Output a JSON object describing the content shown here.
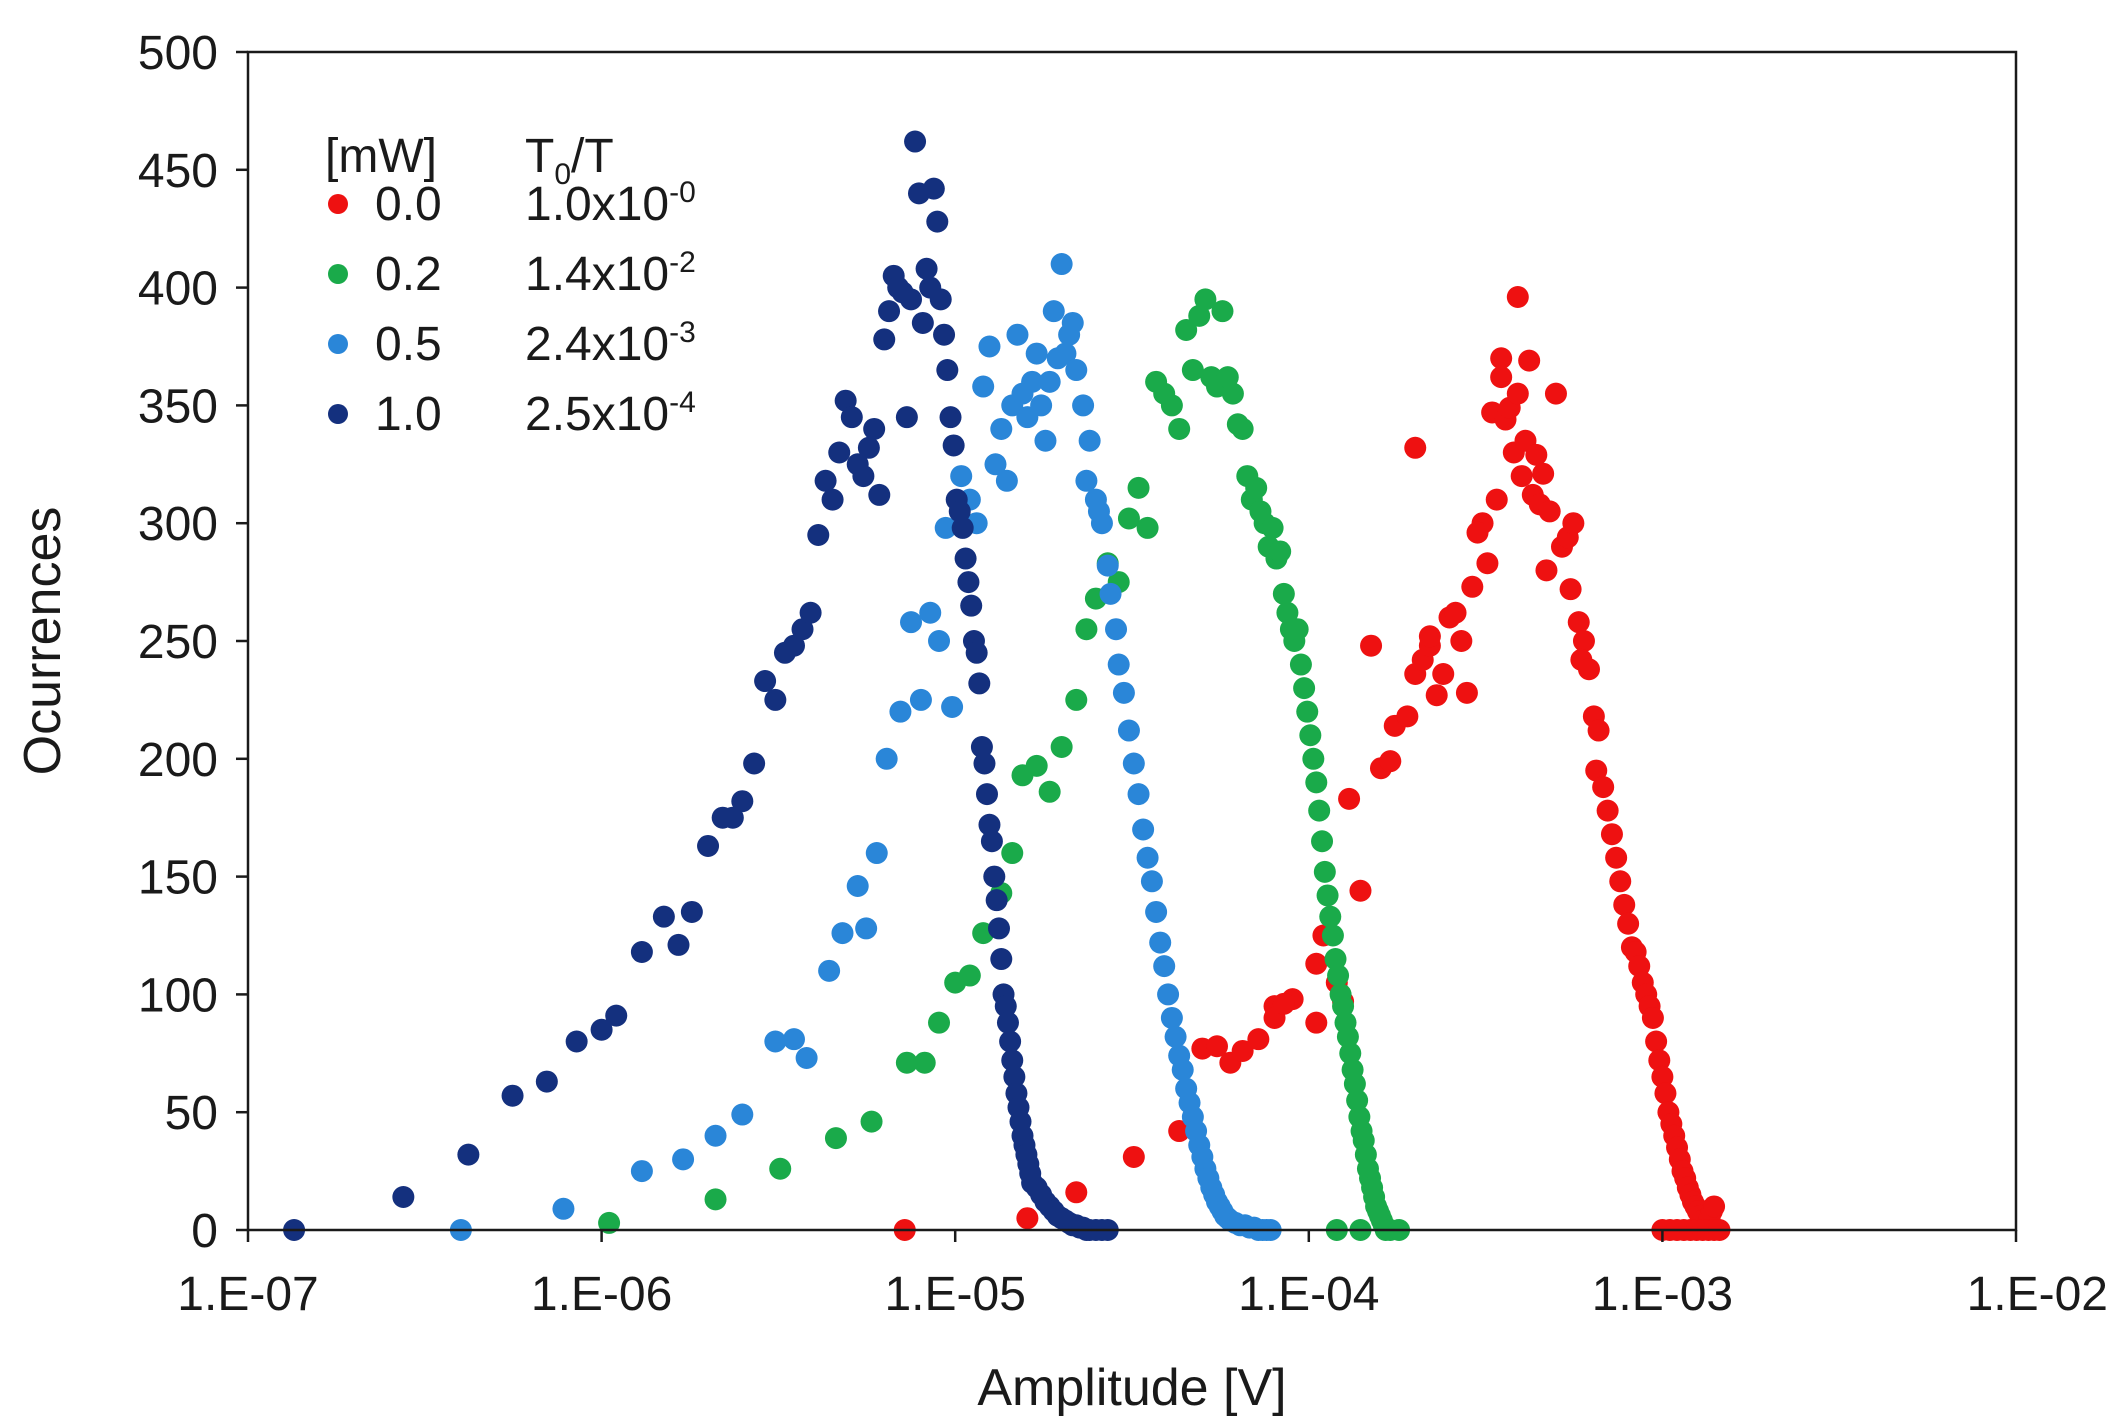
{
  "chart_data": {
    "type": "scatter",
    "title": "",
    "xlabel": "Amplitude [V]",
    "ylabel": "Ocurrences",
    "xscale": "log",
    "xlim": [
      1e-07,
      0.01
    ],
    "ylim": [
      0,
      500
    ],
    "grid": false,
    "xtick_values": [
      1e-07,
      1e-06,
      1e-05,
      0.0001,
      0.001,
      0.01
    ],
    "xtick_labels": [
      "1.E-07",
      "1.E-06",
      "1.E-05",
      "1.E-04",
      "1.E-03",
      "1.E-02"
    ],
    "yticks": [
      0,
      50,
      100,
      150,
      200,
      250,
      300,
      350,
      400,
      450,
      500
    ],
    "legend": {
      "placement": "top-left",
      "header_power": "[mW]",
      "header_ratio_main": "T",
      "header_ratio_sub": "0",
      "header_ratio_tail": "/T",
      "entries": [
        {
          "power": "0.0",
          "ratio_mantissa": "1.0x10",
          "ratio_exponent": "-0"
        },
        {
          "power": "0.2",
          "ratio_mantissa": "1.4x10",
          "ratio_exponent": "-2"
        },
        {
          "power": "0.5",
          "ratio_mantissa": "2.4x10",
          "ratio_exponent": "-3"
        },
        {
          "power": "1.0",
          "ratio_mantissa": "2.5x10",
          "ratio_exponent": "-4"
        }
      ]
    },
    "series": [
      {
        "name": "0.0",
        "color": "#ee1111",
        "x": [
          7.2e-06,
          1.6e-05,
          2.2e-05,
          3.2e-05,
          4.3e-05,
          5e-05,
          5.5e-05,
          6e-05,
          6.5e-05,
          7.2e-05,
          8e-05,
          9e-05,
          8e-05,
          8.5e-05,
          0.000105,
          0.00011,
          0.00012,
          0.00014,
          0.000105,
          0.000125,
          0.00013,
          0.00015,
          0.00016,
          0.00017,
          0.000175,
          0.00019,
          0.0002,
          0.00021,
          0.00022,
          0.0002,
          0.00023,
          0.00025,
          0.00022,
          0.00024,
          0.00026,
          0.00028,
          0.00027,
          0.00029,
          0.00031,
          0.0003,
          0.00033,
          0.00035,
          0.00032,
          0.00034,
          0.00036,
          0.00038,
          0.00035,
          0.00039,
          0.00037,
          0.00039,
          0.0004,
          0.00042,
          0.00041,
          0.00044,
          0.00046,
          0.00043,
          0.00045,
          0.00048,
          0.0005,
          0.00047,
          0.00052,
          0.00054,
          0.00056,
          0.00055,
          0.00058,
          0.0006,
          0.00059,
          0.00062,
          0.00064,
          0.00066,
          0.00065,
          0.00068,
          0.0007,
          0.00072,
          0.00074,
          0.00076,
          0.00078,
          0.0008,
          0.00082,
          0.00084,
          0.00086,
          0.00088,
          0.0009,
          0.00092,
          0.00094,
          0.00096,
          0.00098,
          0.001,
          0.00102,
          0.00104,
          0.00106,
          0.00108,
          0.0011,
          0.00112,
          0.00114,
          0.00116,
          0.00118,
          0.0012,
          0.00122,
          0.00124,
          0.00126,
          0.00128,
          0.0013,
          0.00132,
          0.00134,
          0.00136,
          0.00138,
          0.0014,
          0.001,
          0.00105,
          0.0011,
          0.00115,
          0.0012,
          0.00125,
          0.0013,
          0.00135,
          0.0014,
          0.00145
        ],
        "y": [
          0,
          5,
          16,
          31,
          42,
          77,
          78,
          71,
          76,
          81,
          95,
          98,
          90,
          96,
          113,
          125,
          105,
          144,
          88,
          97,
          183,
          248,
          196,
          199,
          214,
          218,
          236,
          242,
          248,
          332,
          227,
          260,
          252,
          236,
          262,
          228,
          250,
          273,
          300,
          296,
          347,
          362,
          283,
          310,
          344,
          330,
          370,
          396,
          349,
          355,
          320,
          369,
          335,
          329,
          321,
          312,
          308,
          305,
          355,
          280,
          290,
          294,
          300,
          272,
          258,
          250,
          242,
          238,
          218,
          212,
          195,
          188,
          178,
          168,
          158,
          148,
          138,
          130,
          120,
          118,
          112,
          105,
          100,
          95,
          90,
          80,
          72,
          65,
          58,
          50,
          45,
          40,
          35,
          30,
          25,
          22,
          18,
          15,
          12,
          10,
          8,
          6,
          4,
          2,
          3,
          5,
          8,
          10,
          0,
          0,
          0,
          0,
          0,
          0,
          0,
          0,
          0,
          0
        ]
      },
      {
        "name": "0.2",
        "color": "#1aaa4a",
        "x": [
          1.05e-06,
          2.1e-06,
          3.2e-06,
          4.6e-06,
          5.8e-06,
          7.3e-06,
          8.2e-06,
          9e-06,
          1e-05,
          1.1e-05,
          1.2e-05,
          1.35e-05,
          1.45e-05,
          1.55e-05,
          1.7e-05,
          1.85e-05,
          2e-05,
          2.2e-05,
          2.35e-05,
          2.5e-05,
          2.7e-05,
          2.9e-05,
          3.1e-05,
          3.3e-05,
          3.5e-05,
          3.7e-05,
          3.9e-05,
          4.1e-05,
          4.3e-05,
          4.5e-05,
          4.7e-05,
          4.9e-05,
          5.1e-05,
          5.3e-05,
          5.5e-05,
          5.7e-05,
          5.9e-05,
          6.1e-05,
          6.3e-05,
          6.5e-05,
          6.7e-05,
          6.9e-05,
          7.1e-05,
          7.3e-05,
          7.5e-05,
          7.7e-05,
          7.9e-05,
          8.1e-05,
          8.3e-05,
          8.5e-05,
          8.7e-05,
          8.9e-05,
          9.1e-05,
          9.3e-05,
          9.5e-05,
          9.7e-05,
          9.9e-05,
          0.000101,
          0.000103,
          0.000105,
          0.000107,
          0.000109,
          0.000111,
          0.000113,
          0.000115,
          0.000117,
          0.000119,
          0.000121,
          0.000123,
          0.000125,
          0.000127,
          0.000129,
          0.000131,
          0.000133,
          0.000135,
          0.000137,
          0.000139,
          0.000141,
          0.000143,
          0.000145,
          0.000147,
          0.000149,
          0.000151,
          0.000153,
          0.000155,
          0.000157,
          0.000159,
          0.000161,
          0.000163,
          0.000165,
          0.00017,
          0.00018,
          0.00012,
          0.00014
        ],
        "y": [
          3,
          13,
          26,
          39,
          46,
          71,
          71,
          88,
          105,
          108,
          126,
          143,
          160,
          193,
          197,
          186,
          205,
          225,
          255,
          268,
          283,
          275,
          302,
          315,
          298,
          360,
          355,
          350,
          340,
          382,
          365,
          388,
          395,
          362,
          358,
          390,
          362,
          355,
          342,
          340,
          320,
          310,
          315,
          305,
          300,
          290,
          298,
          285,
          288,
          270,
          262,
          255,
          250,
          255,
          240,
          230,
          220,
          210,
          200,
          190,
          178,
          165,
          152,
          142,
          133,
          125,
          115,
          108,
          100,
          95,
          88,
          82,
          75,
          68,
          62,
          55,
          48,
          42,
          38,
          32,
          26,
          22,
          18,
          14,
          10,
          8,
          6,
          4,
          2,
          0,
          0,
          0,
          0,
          0
        ]
      },
      {
        "name": "0.5",
        "color": "#2a86d8",
        "x": [
          4e-07,
          7.8e-07,
          1.3e-06,
          1.7e-06,
          2.1e-06,
          2.5e-06,
          3.1e-06,
          3.5e-06,
          3.8e-06,
          4.4e-06,
          4.8e-06,
          5.3e-06,
          5.6e-06,
          6e-06,
          6.4e-06,
          7e-06,
          7.5e-06,
          8e-06,
          8.5e-06,
          9e-06,
          9.4e-06,
          9.8e-06,
          1.04e-05,
          1.1e-05,
          1.15e-05,
          1.2e-05,
          1.25e-05,
          1.3e-05,
          1.35e-05,
          1.4e-05,
          1.45e-05,
          1.5e-05,
          1.55e-05,
          1.6e-05,
          1.65e-05,
          1.7e-05,
          1.75e-05,
          1.8e-05,
          1.85e-05,
          1.9e-05,
          1.95e-05,
          2e-05,
          2.05e-05,
          2.1e-05,
          2.15e-05,
          2.2e-05,
          2.3e-05,
          2.35e-05,
          2.4e-05,
          2.5e-05,
          2.55e-05,
          2.6e-05,
          2.7e-05,
          2.75e-05,
          2.85e-05,
          2.9e-05,
          3e-05,
          3.1e-05,
          3.2e-05,
          3.3e-05,
          3.4e-05,
          3.5e-05,
          3.6e-05,
          3.7e-05,
          3.8e-05,
          3.9e-05,
          4e-05,
          4.1e-05,
          4.2e-05,
          4.3e-05,
          4.4e-05,
          4.5e-05,
          4.6e-05,
          4.7e-05,
          4.8e-05,
          4.9e-05,
          5e-05,
          5.1e-05,
          5.2e-05,
          5.3e-05,
          5.4e-05,
          5.5e-05,
          5.6e-05,
          5.7e-05,
          5.8e-05,
          5.9e-05,
          6e-05,
          6.2e-05,
          6.4e-05,
          6.6e-05,
          6.8e-05,
          7e-05,
          7.2e-05,
          7.4e-05,
          7.6e-05,
          7.8e-05
        ],
        "y": [
          0,
          9,
          25,
          30,
          40,
          49,
          80,
          81,
          73,
          110,
          126,
          146,
          128,
          160,
          200,
          220,
          258,
          225,
          262,
          250,
          298,
          222,
          320,
          310,
          300,
          358,
          375,
          325,
          340,
          318,
          350,
          380,
          355,
          345,
          360,
          372,
          350,
          335,
          360,
          390,
          370,
          410,
          372,
          380,
          385,
          365,
          350,
          318,
          335,
          310,
          305,
          300,
          282,
          270,
          255,
          240,
          228,
          212,
          198,
          185,
          170,
          158,
          148,
          135,
          122,
          112,
          100,
          90,
          82,
          74,
          68,
          60,
          54,
          48,
          42,
          36,
          31,
          26,
          22,
          18,
          15,
          12,
          10,
          8,
          6,
          5,
          4,
          3,
          2,
          2,
          1,
          1,
          0,
          0,
          0,
          0
        ]
      },
      {
        "name": "1.0",
        "color": "#14307e",
        "x": [
          1.35e-07,
          2.75e-07,
          4.2e-07,
          5.6e-07,
          7e-07,
          8.5e-07,
          1e-06,
          1.1e-06,
          1.3e-06,
          1.5e-06,
          1.65e-06,
          1.8e-06,
          2e-06,
          2.2e-06,
          2.35e-06,
          2.5e-06,
          2.7e-06,
          2.9e-06,
          3.1e-06,
          3.3e-06,
          3.5e-06,
          3.7e-06,
          3.9e-06,
          4.1e-06,
          4.3e-06,
          4.5e-06,
          4.7e-06,
          4.9e-06,
          5.1e-06,
          5.3e-06,
          5.5e-06,
          5.7e-06,
          5.9e-06,
          6.1e-06,
          6.3e-06,
          6.5e-06,
          6.7e-06,
          6.9e-06,
          7.1e-06,
          7.3e-06,
          7.5e-06,
          7.7e-06,
          7.9e-06,
          8.1e-06,
          8.3e-06,
          8.5e-06,
          8.7e-06,
          8.9e-06,
          9.1e-06,
          9.3e-06,
          9.5e-06,
          9.7e-06,
          9.9e-06,
          1.01e-05,
          1.03e-05,
          1.05e-05,
          1.07e-05,
          1.09e-05,
          1.11e-05,
          1.13e-05,
          1.15e-05,
          1.17e-05,
          1.19e-05,
          1.21e-05,
          1.23e-05,
          1.25e-05,
          1.27e-05,
          1.29e-05,
          1.31e-05,
          1.33e-05,
          1.35e-05,
          1.37e-05,
          1.39e-05,
          1.41e-05,
          1.43e-05,
          1.45e-05,
          1.47e-05,
          1.49e-05,
          1.51e-05,
          1.53e-05,
          1.55e-05,
          1.57e-05,
          1.59e-05,
          1.61e-05,
          1.63e-05,
          1.65e-05,
          1.7e-05,
          1.75e-05,
          1.8e-05,
          1.85e-05,
          1.9e-05,
          1.95e-05,
          2e-05,
          2.05e-05,
          2.1e-05,
          2.15e-05,
          2.2e-05,
          2.25e-05,
          2.3e-05,
          2.35e-05,
          2.4e-05,
          2.5e-05,
          2.6e-05,
          2.7e-05
        ],
        "y": [
          0,
          14,
          32,
          57,
          63,
          80,
          85,
          91,
          118,
          133,
          121,
          135,
          163,
          175,
          175,
          182,
          198,
          233,
          225,
          245,
          248,
          255,
          262,
          295,
          318,
          310,
          330,
          352,
          345,
          325,
          320,
          332,
          340,
          312,
          378,
          390,
          405,
          400,
          398,
          345,
          395,
          462,
          440,
          385,
          408,
          400,
          442,
          428,
          395,
          380,
          365,
          345,
          333,
          310,
          305,
          298,
          285,
          275,
          265,
          250,
          245,
          232,
          205,
          198,
          185,
          172,
          165,
          150,
          140,
          128,
          115,
          100,
          95,
          88,
          80,
          72,
          65,
          58,
          52,
          46,
          40,
          36,
          32,
          28,
          24,
          20,
          18,
          15,
          12,
          10,
          8,
          6,
          5,
          4,
          3,
          2,
          2,
          1,
          1,
          0,
          0,
          0,
          0,
          0
        ]
      }
    ]
  }
}
